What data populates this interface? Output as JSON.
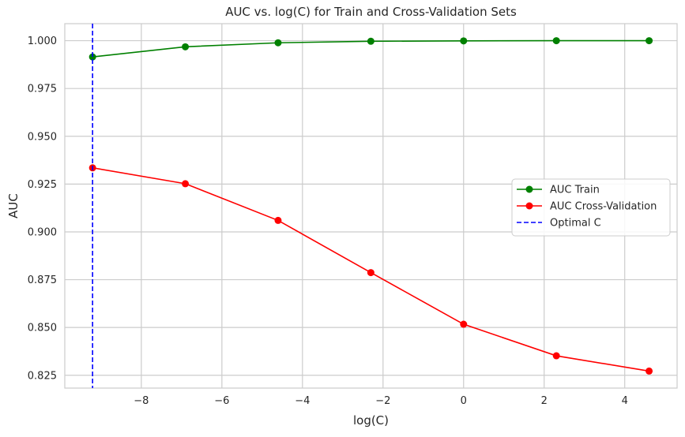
{
  "chart_data": {
    "type": "line",
    "title": "AUC vs. log(C) for Train and Cross-Validation Sets",
    "xlabel": "log(C)",
    "ylabel": "AUC",
    "x": [
      -9.2103,
      -6.9078,
      -4.6052,
      -2.3026,
      0,
      2.3026,
      4.6052
    ],
    "series": [
      {
        "name": "AUC Train",
        "color": "#008000",
        "marker": "circle",
        "linestyle": "solid",
        "values": [
          0.9915,
          0.9968,
          0.9989,
          0.9997,
          0.9999,
          1.0,
          1.0
        ]
      },
      {
        "name": "AUC Cross-Validation",
        "color": "#ff0000",
        "marker": "circle",
        "linestyle": "solid",
        "values": [
          0.9335,
          0.9252,
          0.906,
          0.8787,
          0.8517,
          0.8352,
          0.8272
        ]
      }
    ],
    "vline": {
      "name": "Optimal C",
      "x": -9.2103,
      "color": "#0000ff",
      "linestyle": "dashed"
    },
    "xticks": [
      -8,
      -6,
      -4,
      -2,
      0,
      2,
      4
    ],
    "xtick_labels": [
      "−8",
      "−6",
      "−4",
      "−2",
      "0",
      "2",
      "4"
    ],
    "yticks": [
      0.825,
      0.85,
      0.875,
      0.9,
      0.925,
      0.95,
      0.975,
      1.0
    ],
    "ytick_labels": [
      "0.825",
      "0.850",
      "0.875",
      "0.900",
      "0.925",
      "0.950",
      "0.975",
      "1.000"
    ],
    "xlim": [
      -9.9,
      5.3
    ],
    "ylim": [
      0.8183,
      1.0089
    ],
    "grid": true,
    "legend_position": "center-right",
    "legend": [
      "AUC Train",
      "AUC Cross-Validation",
      "Optimal C"
    ]
  }
}
